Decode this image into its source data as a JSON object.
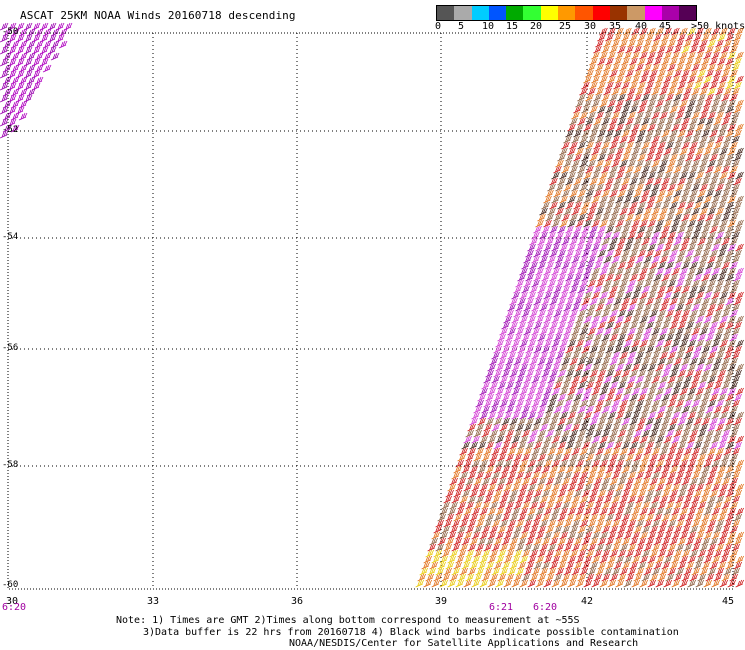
{
  "title": "ASCAT 25KM NOAA Winds 20160718 descending",
  "color_scale": {
    "colors": [
      "#555555",
      "#aaaaaa",
      "#00ccff",
      "#0055ff",
      "#00aa00",
      "#33ff33",
      "#ffff00",
      "#ff9900",
      "#ff5500",
      "#ff0000",
      "#993300",
      "#cc9966",
      "#ff00ff",
      "#aa00aa",
      "#550055"
    ],
    "labels": [
      "0",
      "5",
      "10",
      "15",
      "20",
      "25",
      "30",
      "35",
      "40",
      "45"
    ],
    "unit_label": ">50 knots"
  },
  "y_ticks": [
    "-50",
    "-52",
    "-54",
    "-56",
    "-58",
    "-60"
  ],
  "x_ticks": [
    "30",
    "33",
    "36",
    "39",
    "42",
    "45"
  ],
  "times": [
    {
      "text": "6:20"
    },
    {
      "text": "6:21"
    },
    {
      "text": "6:20"
    }
  ],
  "notes": {
    "line1": "Note: 1) Times are GMT 2)Times along bottom correspond to measurement at ~55S",
    "line2": "3)Data buffer is 22 hrs from 20160718 4) Black wind barbs indicate possible contamination",
    "line3": "NOAA/NESDIS/Center for Satellite Applications and Research"
  },
  "swath_colors": {
    "purple": "#9a00b0",
    "magenta": "#d030d0",
    "red": "#cc1111",
    "orange": "#e06a10",
    "brown": "#8a5a3a",
    "dark": "#3a1a10",
    "yellow": "#e8c800"
  }
}
